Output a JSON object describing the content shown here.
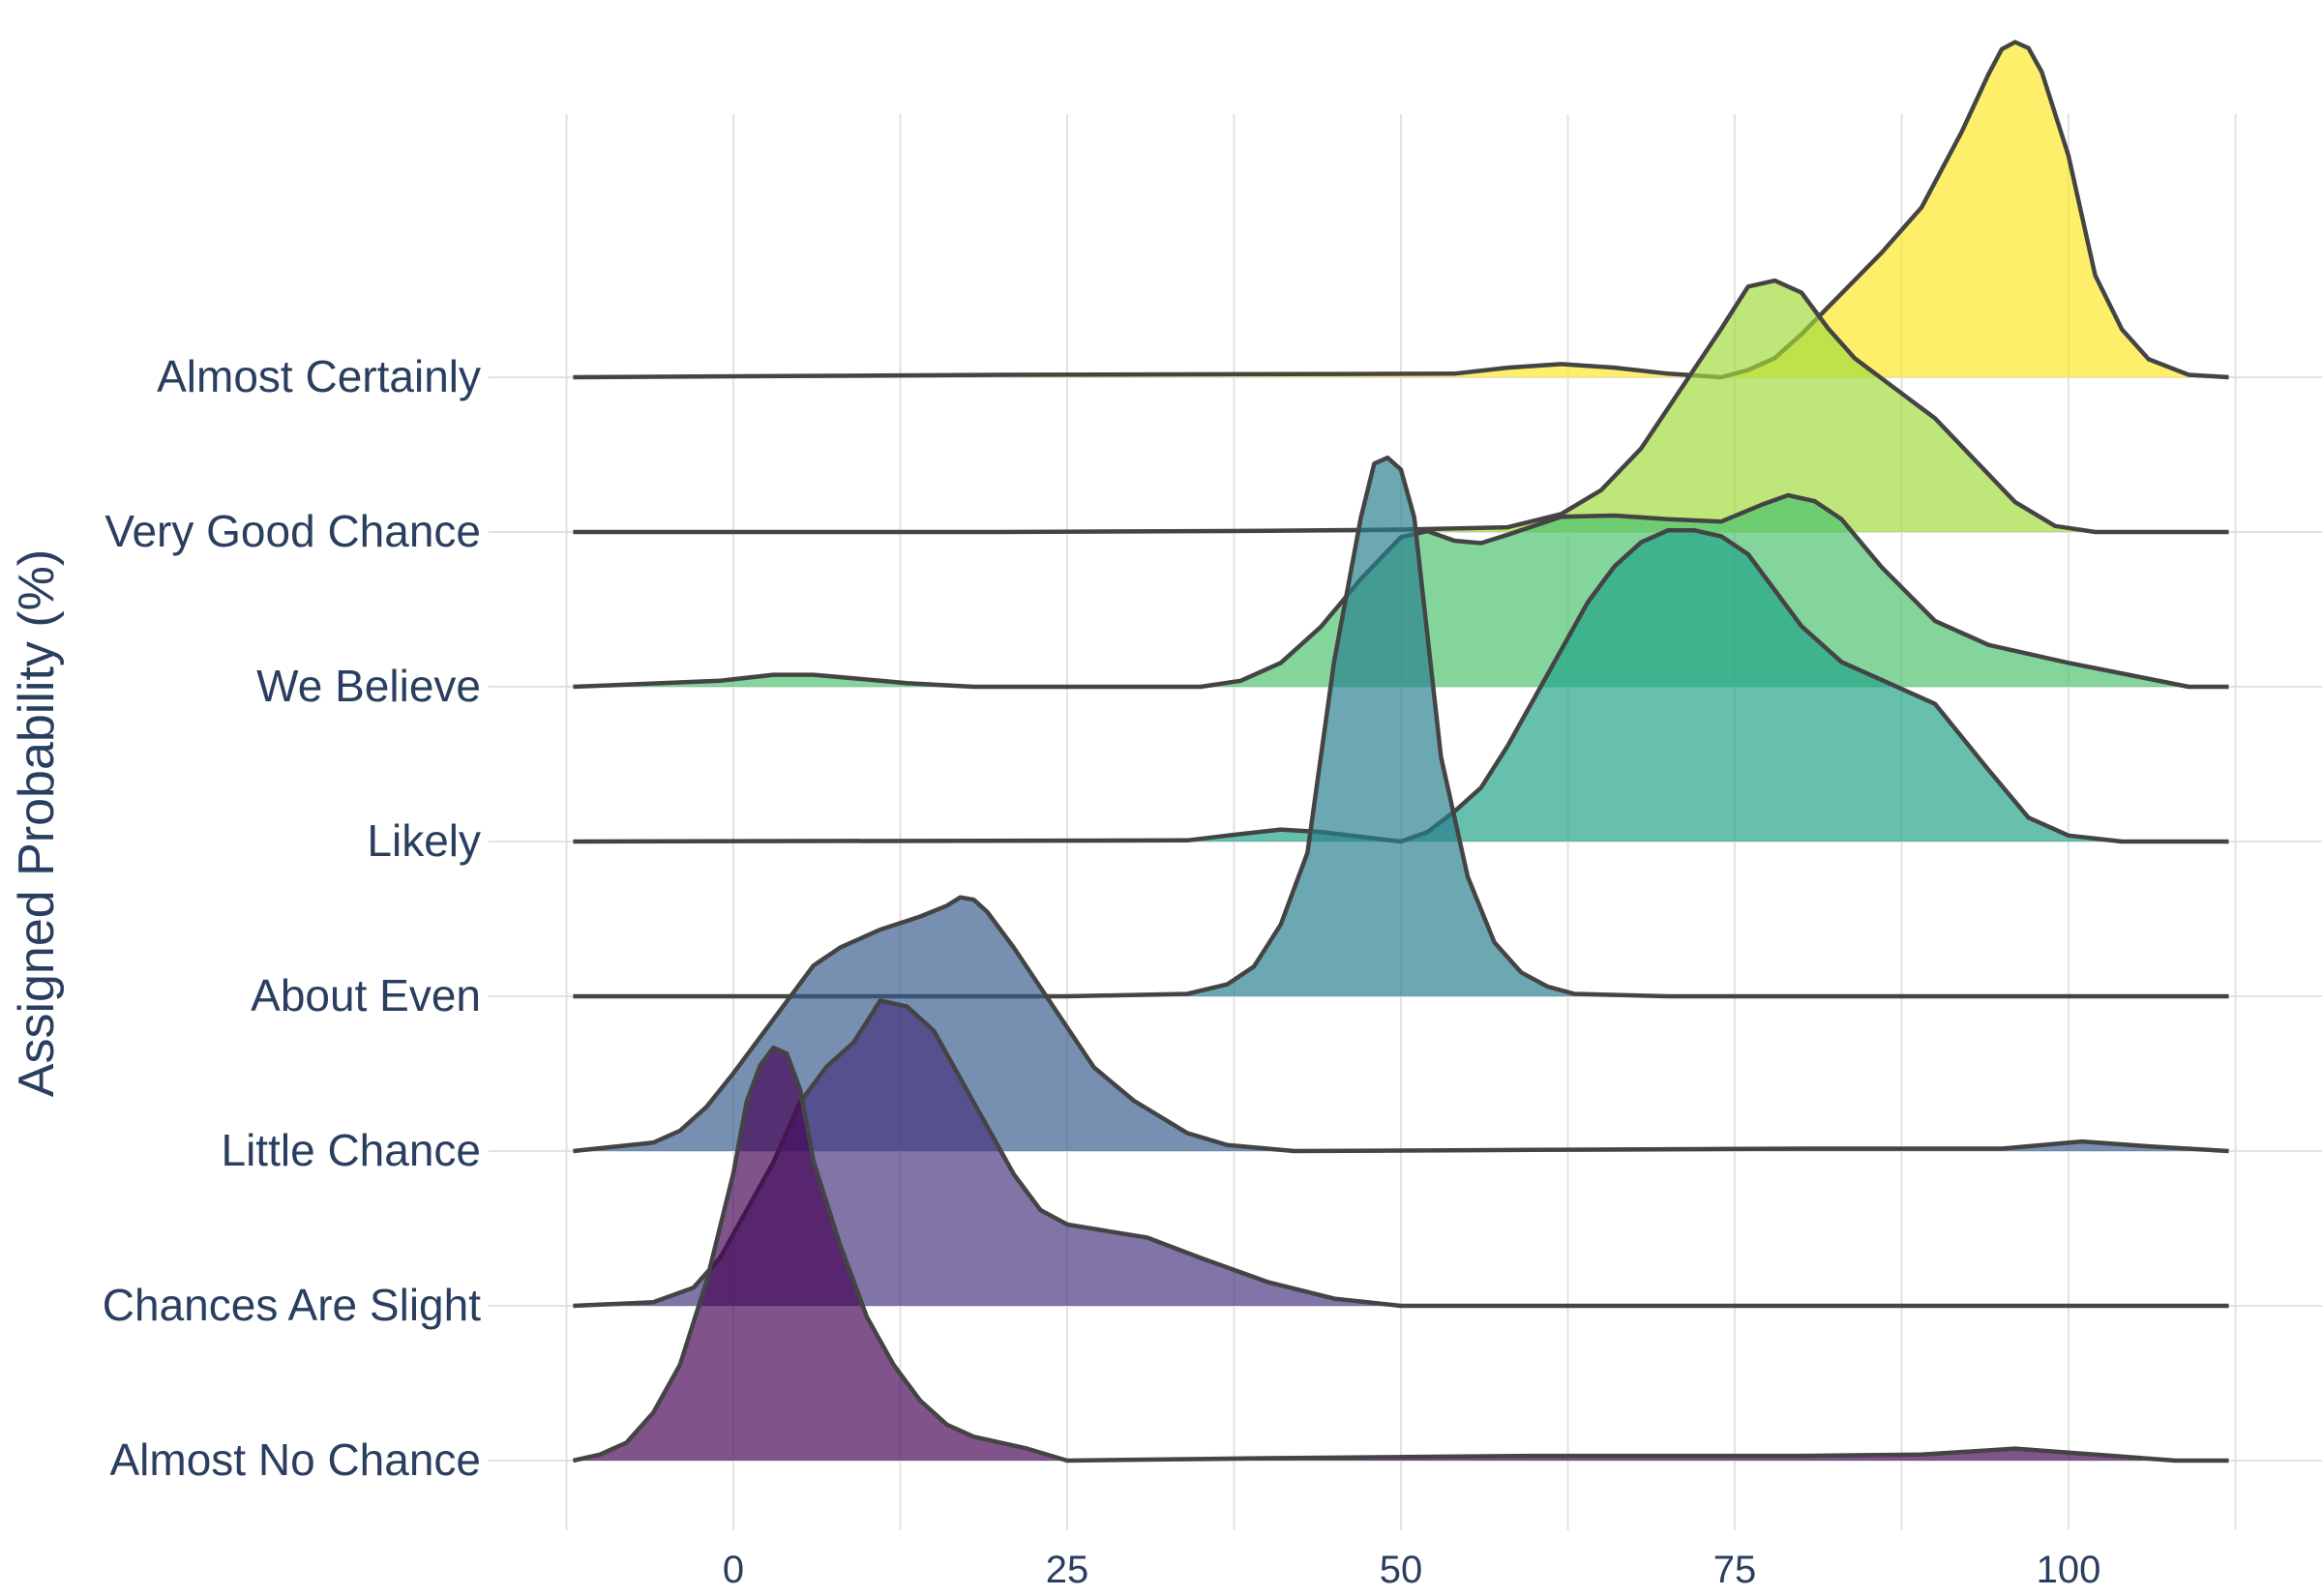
{
  "chart_data": {
    "type": "ridgeline",
    "title": "",
    "xlabel": "",
    "ylabel": "Assigned Probability (%)",
    "xlim": [
      -24,
      226
    ],
    "xticks": [
      0,
      25,
      50,
      75,
      100
    ],
    "grid": true,
    "ridge_step_pct": 12.93,
    "categories": [
      "Almost No Chance",
      "Chances Are Slight",
      "Little Chance",
      "About Even",
      "Likely",
      "We Believe",
      "Very Good Chance",
      "Almost Certainly"
    ],
    "series": [
      {
        "name": "Almost No Chance",
        "color": "#440154",
        "x": [
          -12,
          -10,
          -8,
          -6,
          -4,
          -2,
          0,
          1,
          2,
          3,
          4,
          5,
          6,
          8,
          10,
          12,
          14,
          16,
          18,
          22,
          25,
          40,
          60,
          80,
          89,
          96,
          102,
          108,
          112
        ],
        "y": [
          0,
          0.5,
          1.5,
          4,
          8,
          15,
          24,
          30,
          33,
          34.5,
          34,
          31,
          25,
          18,
          12,
          8,
          5,
          3,
          2,
          1,
          0,
          0.2,
          0.4,
          0.4,
          0.5,
          1,
          0.5,
          0,
          0
        ]
      },
      {
        "name": "Chances Are Slight",
        "color": "#46327e",
        "x": [
          -12,
          -6,
          -3,
          -1,
          1,
          3,
          5,
          7,
          9,
          11,
          13,
          15,
          17,
          19,
          21,
          23,
          25,
          31,
          35,
          40,
          45,
          50,
          70,
          112
        ],
        "y": [
          0,
          0.3,
          1.5,
          4,
          8,
          12,
          17,
          20,
          22,
          25.5,
          25,
          23,
          19,
          15,
          11,
          8,
          6.8,
          5.7,
          4,
          2,
          0.6,
          0,
          0,
          0
        ]
      },
      {
        "name": "Little Chance",
        "color": "#365c8d",
        "x": [
          -12,
          -6,
          -4,
          -2,
          0,
          3,
          6,
          8,
          11,
          14,
          16,
          17,
          18,
          19,
          21,
          24,
          27,
          30,
          34,
          37,
          42,
          60,
          80,
          95,
          101,
          106,
          112
        ],
        "y": [
          0,
          0.7,
          1.7,
          3.7,
          6.5,
          11,
          15.5,
          17,
          18.5,
          19.6,
          20.5,
          21.2,
          21,
          20,
          17,
          12,
          7,
          4.2,
          1.5,
          0.5,
          0,
          0.1,
          0.2,
          0.2,
          0.8,
          0.4,
          0
        ]
      },
      {
        "name": "About Even",
        "color": "#277f8e",
        "x": [
          -12,
          25,
          34,
          37,
          39,
          41,
          43,
          45,
          47,
          48,
          49,
          50,
          51,
          52,
          53,
          55,
          57,
          59,
          61,
          63,
          70,
          112
        ],
        "y": [
          0,
          0,
          0.2,
          1,
          2.5,
          6,
          12,
          28,
          40,
          44.5,
          45,
          44,
          40,
          30,
          20,
          10,
          4.5,
          2,
          0.8,
          0.2,
          0,
          0
        ]
      },
      {
        "name": "Likely",
        "color": "#1fa187",
        "x": [
          -12,
          34,
          37,
          41,
          44,
          47,
          50,
          52,
          54,
          56,
          58,
          60,
          62,
          64,
          66,
          68,
          70,
          72,
          74,
          76,
          78,
          80,
          83,
          86,
          90,
          94,
          97,
          100,
          104,
          112
        ],
        "y": [
          0,
          0.1,
          0.5,
          1,
          0.8,
          0.4,
          0,
          0.8,
          2.5,
          4.5,
          8,
          12,
          16,
          20,
          23,
          25,
          26,
          26,
          25.5,
          24,
          21,
          18,
          15,
          13.5,
          11.5,
          6,
          2,
          0.5,
          0,
          0
        ]
      },
      {
        "name": "We Believe",
        "color": "#4ac16d",
        "x": [
          -12,
          -1,
          3,
          6,
          9,
          13,
          18,
          25,
          35,
          38,
          41,
          44,
          47,
          50,
          52,
          54,
          56,
          58,
          62,
          66,
          70,
          74,
          77,
          79,
          81,
          83,
          86,
          90,
          94,
          100,
          109,
          112
        ],
        "y": [
          0,
          0.5,
          1,
          1,
          0.7,
          0.3,
          0,
          0,
          0,
          0.5,
          2,
          5,
          9,
          12.5,
          13,
          12.2,
          12,
          12.7,
          14.2,
          14.3,
          14,
          13.8,
          15.2,
          16,
          15.5,
          14,
          10,
          5.5,
          3.5,
          2,
          0,
          0
        ]
      },
      {
        "name": "Very Good Chance",
        "color": "#a0da39",
        "x": [
          -12,
          20,
          40,
          50,
          58,
          62,
          65,
          68,
          71,
          74,
          76,
          78,
          80,
          82,
          84,
          87,
          90,
          93,
          96,
          99,
          102,
          112
        ],
        "y": [
          0,
          0,
          0.1,
          0.2,
          0.4,
          1.5,
          3.5,
          7,
          12,
          17,
          20.5,
          21,
          20,
          17,
          14.5,
          12,
          9.5,
          6,
          2.5,
          0.5,
          0,
          0
        ]
      },
      {
        "name": "Almost Certainly",
        "color": "#fde725",
        "x": [
          -12,
          20,
          54,
          58,
          62,
          66,
          70,
          74,
          76,
          78,
          80,
          83,
          86,
          89,
          92,
          94,
          95,
          96,
          97,
          98,
          100,
          102,
          104,
          106,
          109,
          112
        ],
        "y": [
          0,
          0.2,
          0.3,
          0.8,
          1.1,
          0.8,
          0.3,
          0,
          0.6,
          1.6,
          3.6,
          7,
          10.4,
          14.2,
          20.5,
          25.3,
          27.4,
          28,
          27.5,
          25.5,
          18.5,
          8.5,
          4,
          1.5,
          0.2,
          0
        ]
      }
    ]
  }
}
